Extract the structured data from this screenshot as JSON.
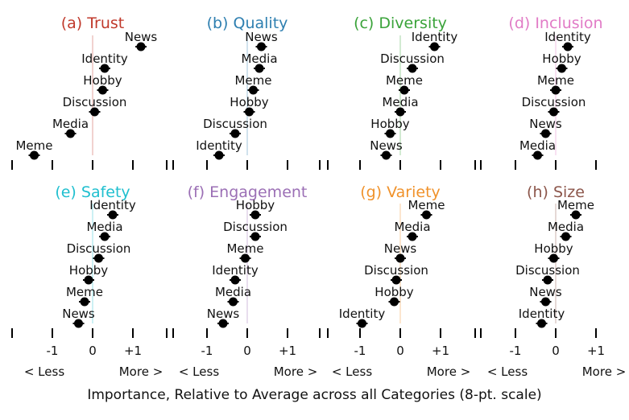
{
  "figure": {
    "xlabel": "Importance, Relative to Average across all Categories (8-pt. scale)",
    "x_ticks": [
      -1,
      0,
      1
    ],
    "x_tick_labels": [
      "-1",
      "0",
      "+1"
    ],
    "less_label": "< Less",
    "more_label": "More >",
    "marker_color": "#000000"
  },
  "chart_data": [
    {
      "type": "scatter",
      "title": "(a) Trust",
      "color": "#c0392b",
      "xlim": [
        -2,
        2
      ],
      "points": [
        {
          "label": "News",
          "x": 1.2
        },
        {
          "label": "Identity",
          "x": 0.3
        },
        {
          "label": "Hobby",
          "x": 0.25
        },
        {
          "label": "Discussion",
          "x": 0.05
        },
        {
          "label": "Media",
          "x": -0.55
        },
        {
          "label": "Meme",
          "x": -1.45
        }
      ]
    },
    {
      "type": "scatter",
      "title": "(b) Quality",
      "color": "#2e7fb0",
      "xlim": [
        -2,
        2
      ],
      "points": [
        {
          "label": "News",
          "x": 0.35
        },
        {
          "label": "Media",
          "x": 0.3
        },
        {
          "label": "Meme",
          "x": 0.15
        },
        {
          "label": "Hobby",
          "x": 0.05
        },
        {
          "label": "Discussion",
          "x": -0.3
        },
        {
          "label": "Identity",
          "x": -0.7
        }
      ]
    },
    {
      "type": "scatter",
      "title": "(c) Diversity",
      "color": "#3aa33a",
      "xlim": [
        -2,
        2
      ],
      "points": [
        {
          "label": "Identity",
          "x": 0.85
        },
        {
          "label": "Discussion",
          "x": 0.3
        },
        {
          "label": "Meme",
          "x": 0.1
        },
        {
          "label": "Media",
          "x": 0.0
        },
        {
          "label": "Hobby",
          "x": -0.25
        },
        {
          "label": "News",
          "x": -0.35
        }
      ]
    },
    {
      "type": "scatter",
      "title": "(d) Inclusion",
      "color": "#e17bc6",
      "xlim": [
        -2,
        2
      ],
      "points": [
        {
          "label": "Identity",
          "x": 0.3
        },
        {
          "label": "Hobby",
          "x": 0.15
        },
        {
          "label": "Meme",
          "x": 0.0
        },
        {
          "label": "Discussion",
          "x": -0.05
        },
        {
          "label": "News",
          "x": -0.25
        },
        {
          "label": "Media",
          "x": -0.45
        }
      ]
    },
    {
      "type": "scatter",
      "title": "(e) Safety",
      "color": "#1fbfcf",
      "xlim": [
        -2,
        2
      ],
      "points": [
        {
          "label": "Identity",
          "x": 0.5
        },
        {
          "label": "Media",
          "x": 0.3
        },
        {
          "label": "Discussion",
          "x": 0.15
        },
        {
          "label": "Hobby",
          "x": -0.1
        },
        {
          "label": "Meme",
          "x": -0.2
        },
        {
          "label": "News",
          "x": -0.35
        }
      ]
    },
    {
      "type": "scatter",
      "title": "(f) Engagement",
      "color": "#9b6fb5",
      "xlim": [
        -2,
        2
      ],
      "points": [
        {
          "label": "Hobby",
          "x": 0.2
        },
        {
          "label": "Discussion",
          "x": 0.2
        },
        {
          "label": "Meme",
          "x": -0.05
        },
        {
          "label": "Identity",
          "x": -0.3
        },
        {
          "label": "Media",
          "x": -0.35
        },
        {
          "label": "News",
          "x": -0.6
        }
      ]
    },
    {
      "type": "scatter",
      "title": "(g) Variety",
      "color": "#f0922b",
      "xlim": [
        -2,
        2
      ],
      "points": [
        {
          "label": "Meme",
          "x": 0.65
        },
        {
          "label": "Media",
          "x": 0.3
        },
        {
          "label": "News",
          "x": 0.0
        },
        {
          "label": "Discussion",
          "x": -0.1
        },
        {
          "label": "Hobby",
          "x": -0.15
        },
        {
          "label": "Identity",
          "x": -0.95
        }
      ]
    },
    {
      "type": "scatter",
      "title": "(h) Size",
      "color": "#8c564b",
      "xlim": [
        -2,
        2
      ],
      "points": [
        {
          "label": "Meme",
          "x": 0.5
        },
        {
          "label": "Media",
          "x": 0.25
        },
        {
          "label": "Hobby",
          "x": -0.05
        },
        {
          "label": "Discussion",
          "x": -0.2
        },
        {
          "label": "News",
          "x": -0.25
        },
        {
          "label": "Identity",
          "x": -0.35
        }
      ]
    }
  ]
}
